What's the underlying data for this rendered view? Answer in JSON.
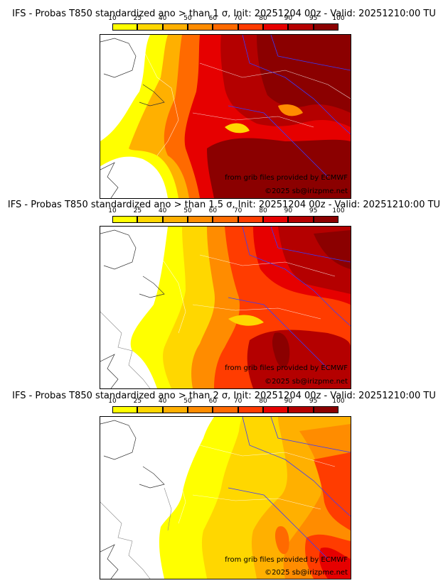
{
  "colors": [
    "#ffff00",
    "#ffd700",
    "#ffb000",
    "#ff8c00",
    "#ff6a00",
    "#ff3c00",
    "#e60000",
    "#b40000",
    "#8b0000"
  ],
  "levels": [
    "10",
    "25",
    "40",
    "50",
    "60",
    "70",
    "80",
    "90",
    "95",
    "100"
  ],
  "panels": [
    {
      "title": "IFS - Probas T850  standardized ano > than 1 σ, Init: 20251204 00z - Valid: 20251210:00 TU",
      "credit1": "from grib files provided by ECMWF",
      "credit2": "©2025 sb@irizpme.net"
    },
    {
      "title": "IFS - Probas T850  standardized ano > than 1.5 σ, Init: 20251204 00z - Valid: 20251210:00 TU",
      "credit1": "from grib files provided by ECMWF",
      "credit2": "©2025 sb@irizpme.net"
    },
    {
      "title": "IFS - Probas T850  standardized ano > than 2 σ, Init: 20251204 00z - Valid: 20251210:00 TU",
      "credit1": "from grib files provided by ECMWF",
      "credit2": "©2025 sb@irizpme.net"
    }
  ]
}
